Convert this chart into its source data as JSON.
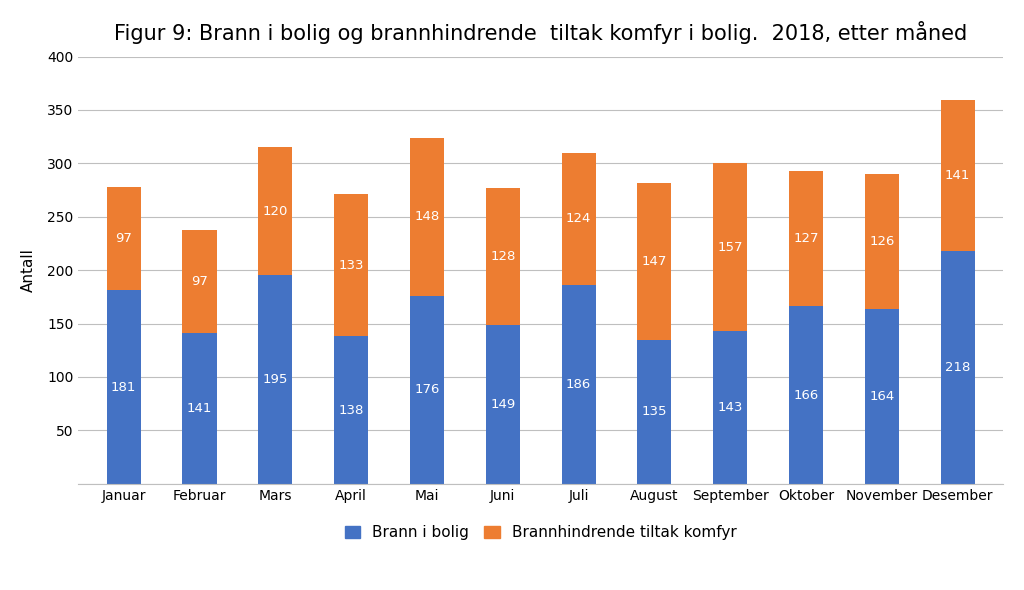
{
  "title": "Figur 9: Brann i bolig og brannhindrende  tiltak komfyr i bolig.  2018, etter måned",
  "months": [
    "Januar",
    "Februar",
    "Mars",
    "April",
    "Mai",
    "Juni",
    "Juli",
    "August",
    "September",
    "Oktober",
    "November",
    "Desember"
  ],
  "brann_i_bolig": [
    181,
    141,
    195,
    138,
    176,
    149,
    186,
    135,
    143,
    166,
    164,
    218
  ],
  "brannhindrende": [
    97,
    97,
    120,
    133,
    148,
    128,
    124,
    147,
    157,
    127,
    126,
    141
  ],
  "color_blue": "#4472C4",
  "color_orange": "#ED7D31",
  "ylabel": "Antall",
  "ylim": [
    0,
    400
  ],
  "yticks": [
    0,
    50,
    100,
    150,
    200,
    250,
    300,
    350,
    400
  ],
  "legend_blue": "Brann i bolig",
  "legend_orange": "Brannhindrende tiltak komfyr",
  "background_color": "#ffffff",
  "grid_color": "#bfbfbf",
  "title_fontsize": 15,
  "label_fontsize": 11,
  "tick_fontsize": 10,
  "bar_value_fontsize": 9.5
}
